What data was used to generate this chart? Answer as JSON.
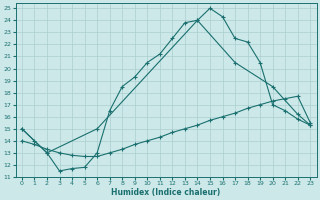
{
  "xlabel": "Humidex (Indice chaleur)",
  "bg_color": "#cde8e8",
  "line_color": "#1a7070",
  "grid_color": "#aacfcf",
  "xlim": [
    -0.5,
    23.5
  ],
  "ylim": [
    11,
    25.4
  ],
  "xticks": [
    0,
    1,
    2,
    3,
    4,
    5,
    6,
    7,
    8,
    9,
    10,
    11,
    12,
    13,
    14,
    15,
    16,
    17,
    18,
    19,
    20,
    21,
    22,
    23
  ],
  "yticks": [
    11,
    12,
    13,
    14,
    15,
    16,
    17,
    18,
    19,
    20,
    21,
    22,
    23,
    24,
    25
  ],
  "line1_x": [
    0,
    1,
    2,
    3,
    4,
    5,
    6,
    7,
    8,
    9,
    10,
    11,
    12,
    13,
    14,
    15,
    16,
    17,
    18,
    19,
    20,
    21,
    22,
    23
  ],
  "line1_y": [
    15.0,
    14.0,
    13.0,
    11.5,
    11.7,
    11.8,
    13.0,
    16.5,
    18.5,
    19.3,
    20.5,
    21.2,
    22.5,
    23.8,
    24.0,
    25.0,
    24.3,
    22.5,
    22.2,
    20.5,
    17.0,
    16.5,
    15.8,
    15.3
  ],
  "line2_x": [
    0,
    2,
    6,
    14,
    17,
    20,
    22,
    23
  ],
  "line2_y": [
    15.0,
    13.0,
    15.0,
    24.0,
    20.5,
    18.5,
    16.2,
    15.3
  ],
  "line3_x": [
    0,
    1,
    2,
    3,
    4,
    5,
    6,
    7,
    8,
    9,
    10,
    11,
    12,
    13,
    14,
    15,
    16,
    17,
    18,
    19,
    20,
    21,
    22,
    23
  ],
  "line3_y": [
    14.0,
    13.7,
    13.3,
    13.0,
    12.8,
    12.7,
    12.7,
    13.0,
    13.3,
    13.7,
    14.0,
    14.3,
    14.7,
    15.0,
    15.3,
    15.7,
    16.0,
    16.3,
    16.7,
    17.0,
    17.3,
    17.5,
    17.7,
    15.5
  ]
}
